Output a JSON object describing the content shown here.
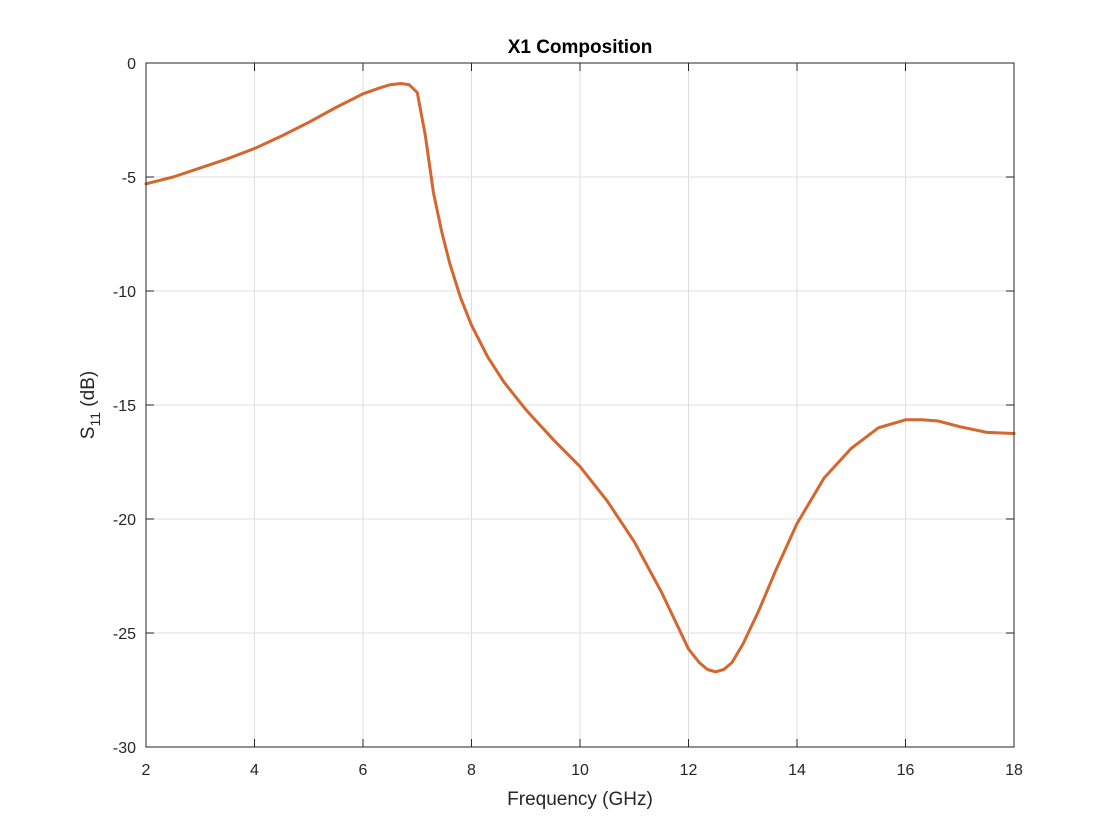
{
  "chart_data": {
    "type": "line",
    "title": "X1 Composition",
    "xlabel": "Frequency (GHz)",
    "ylabel": {
      "main": "S",
      "sub": "11",
      "suffix": " (dB)"
    },
    "xlim": [
      2,
      18
    ],
    "ylim": [
      -30,
      0
    ],
    "xticks": [
      "2",
      "4",
      "6",
      "8",
      "10",
      "12",
      "14",
      "16",
      "18"
    ],
    "yticks": [
      "0",
      "-5",
      "-10",
      "-15",
      "-20",
      "-25",
      "-30"
    ],
    "grid": true,
    "colors": {
      "series": "#D4662E",
      "frame": "#262626",
      "grid": "#dfdfdf"
    },
    "series": [
      {
        "x": [
          2.0,
          2.5,
          3.0,
          3.5,
          4.0,
          4.5,
          5.0,
          5.5,
          6.0,
          6.3,
          6.5,
          6.7,
          6.85,
          7.0,
          7.15,
          7.3,
          7.45,
          7.6,
          7.8,
          8.0,
          8.3,
          8.6,
          9.0,
          9.5,
          10.0,
          10.5,
          11.0,
          11.5,
          11.8,
          12.0,
          12.2,
          12.35,
          12.5,
          12.65,
          12.8,
          13.0,
          13.3,
          13.6,
          14.0,
          14.5,
          15.0,
          15.5,
          16.0,
          16.3,
          16.6,
          17.0,
          17.5,
          18.0
        ],
        "y": [
          -5.3,
          -5.0,
          -4.6,
          -4.2,
          -3.75,
          -3.2,
          -2.6,
          -1.95,
          -1.35,
          -1.1,
          -0.95,
          -0.9,
          -0.95,
          -1.3,
          -3.2,
          -5.7,
          -7.4,
          -8.8,
          -10.3,
          -11.5,
          -12.9,
          -14.0,
          -15.2,
          -16.5,
          -17.7,
          -19.2,
          -21.0,
          -23.2,
          -24.7,
          -25.7,
          -26.3,
          -26.6,
          -26.7,
          -26.6,
          -26.3,
          -25.5,
          -24.0,
          -22.3,
          -20.2,
          -18.2,
          -16.9,
          -16.0,
          -15.65,
          -15.65,
          -15.7,
          -15.95,
          -16.2,
          -16.25
        ]
      }
    ]
  }
}
